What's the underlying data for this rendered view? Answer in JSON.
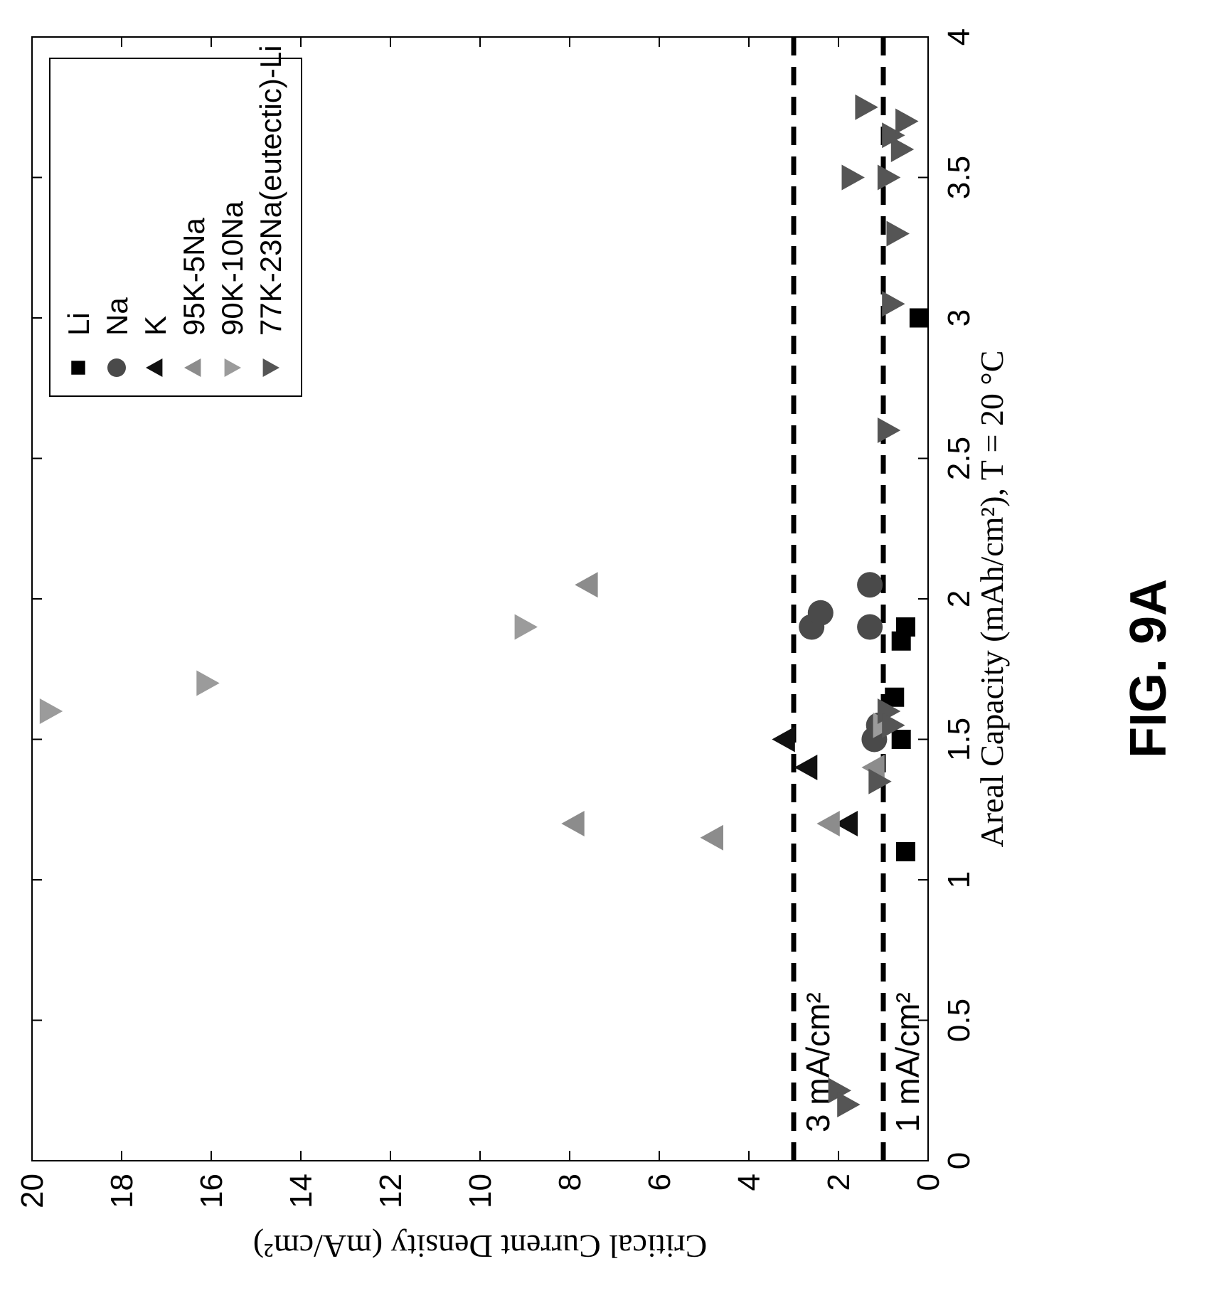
{
  "figure_label": "FIG. 9A",
  "chart_data": {
    "type": "scatter",
    "xlabel": "Areal Capacity (mAh/cm²), T = 20 °C",
    "ylabel": "Critical Current Density (mA/cm²)",
    "xlim": [
      0,
      4
    ],
    "ylim": [
      0,
      20
    ],
    "xticks": [
      "0",
      "0.5",
      "1",
      "1.5",
      "2",
      "2.5",
      "3",
      "3.5",
      "4"
    ],
    "yticks": [
      "0",
      "2",
      "4",
      "6",
      "8",
      "10",
      "12",
      "14",
      "16",
      "18",
      "20"
    ],
    "grid": false,
    "legend_position": "top-right",
    "reference_lines": [
      {
        "y": 3,
        "label": "3 mA/cm²",
        "style": "dashed"
      },
      {
        "y": 1,
        "label": "1 mA/cm²",
        "style": "dashed"
      }
    ],
    "series": [
      {
        "name": "Li",
        "marker": "square",
        "color": "#000000",
        "points": [
          [
            1.1,
            0.5
          ],
          [
            1.5,
            0.6
          ],
          [
            1.65,
            0.75
          ],
          [
            1.85,
            0.6
          ],
          [
            1.9,
            0.5
          ],
          [
            3.0,
            0.2
          ]
        ]
      },
      {
        "name": "Na",
        "marker": "circle",
        "color": "#4a4a4a",
        "points": [
          [
            1.5,
            1.2
          ],
          [
            1.55,
            1.1
          ],
          [
            1.9,
            2.6
          ],
          [
            1.95,
            2.4
          ],
          [
            1.9,
            1.3
          ],
          [
            2.05,
            1.3
          ]
        ]
      },
      {
        "name": "K",
        "marker": "triangle-up",
        "color": "#111111",
        "points": [
          [
            1.2,
            1.8
          ],
          [
            1.4,
            2.7
          ],
          [
            1.5,
            3.2
          ]
        ]
      },
      {
        "name": "95K-5Na",
        "marker": "triangle-up",
        "color": "#8c8c8c",
        "points": [
          [
            1.2,
            2.2
          ],
          [
            1.2,
            7.9
          ],
          [
            1.15,
            4.8
          ],
          [
            2.05,
            7.6
          ],
          [
            1.4,
            1.2
          ]
        ]
      },
      {
        "name": "90K-10Na",
        "marker": "triangle-down",
        "color": "#9b9b9b",
        "points": [
          [
            1.6,
            19.6
          ],
          [
            1.7,
            16.1
          ],
          [
            1.9,
            9.0
          ],
          [
            1.55,
            1.0
          ]
        ]
      },
      {
        "name": "77K-23Na(eutectic)-Li",
        "marker": "triangle-down",
        "color": "#555555",
        "points": [
          [
            0.25,
            2.0
          ],
          [
            0.2,
            1.8
          ],
          [
            1.35,
            1.1
          ],
          [
            1.6,
            0.9
          ],
          [
            1.55,
            0.8
          ],
          [
            2.6,
            0.9
          ],
          [
            3.05,
            0.8
          ],
          [
            3.3,
            0.7
          ],
          [
            3.5,
            0.9
          ],
          [
            3.5,
            1.7
          ],
          [
            3.6,
            0.6
          ],
          [
            3.65,
            0.8
          ],
          [
            3.7,
            0.5
          ],
          [
            3.75,
            1.4
          ]
        ]
      }
    ]
  }
}
